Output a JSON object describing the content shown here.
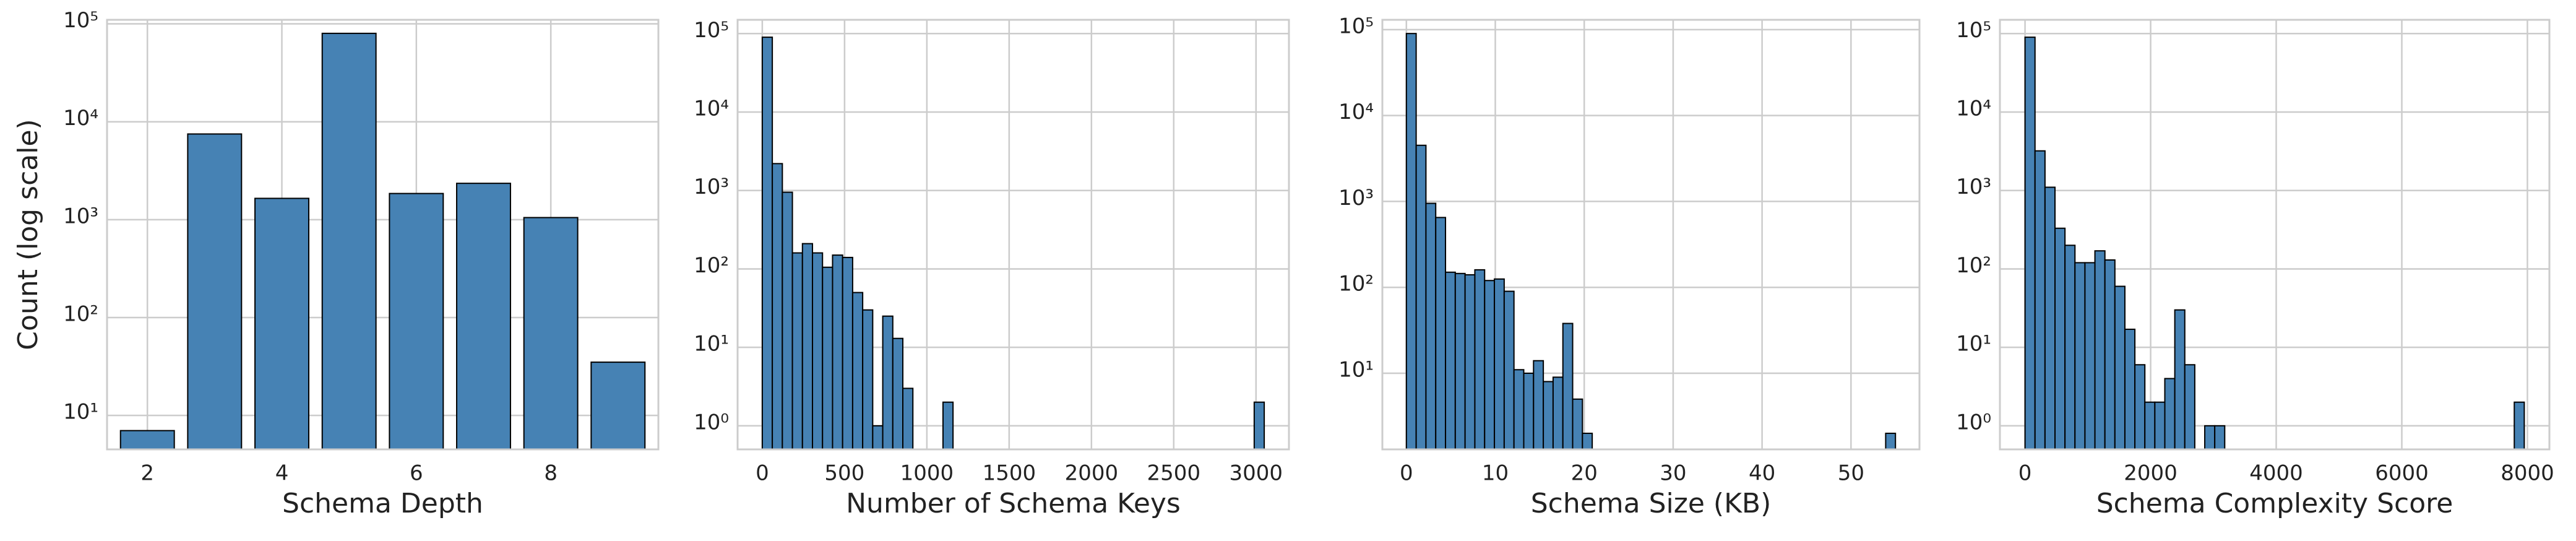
{
  "chart_data": [
    {
      "type": "bar",
      "x": [
        2,
        3,
        4,
        5,
        6,
        7,
        8,
        9
      ],
      "values": [
        7,
        7500,
        1650,
        80000,
        1850,
        2350,
        1050,
        35
      ],
      "color": "#4682b4",
      "edgecolor": "#000000",
      "xlabel": "Schema Depth",
      "ylabel": "Count (log scale)",
      "xlim": [
        1.4,
        9.6
      ],
      "xticks": [
        2,
        4,
        6,
        8
      ],
      "ylim": [
        4.5,
        110000
      ],
      "log_y": true,
      "grid": true,
      "yticks": [
        {
          "value": 10,
          "label": "10¹"
        },
        {
          "value": 100,
          "label": "10²"
        },
        {
          "value": 1000,
          "label": "10³"
        },
        {
          "value": 10000,
          "label": "10⁴"
        },
        {
          "value": 100000,
          "label": "10⁵"
        }
      ]
    },
    {
      "type": "histogram",
      "bins": [
        0,
        61,
        122,
        183,
        244,
        305,
        366,
        427,
        488,
        549,
        610,
        671,
        732,
        793,
        854,
        915,
        976,
        1037,
        1098,
        1159,
        1220,
        1281,
        1342,
        1403,
        1464,
        1525,
        1586,
        1647,
        1708,
        1769,
        1830,
        1891,
        1952,
        2013,
        2074,
        2135,
        2196,
        2257,
        2318,
        2379,
        2440,
        2501,
        2562,
        2623,
        2684,
        2745,
        2806,
        2867,
        2928,
        2989,
        3050
      ],
      "values": [
        90000,
        2200,
        950,
        160,
        210,
        160,
        105,
        150,
        140,
        50,
        30,
        1,
        25,
        13,
        3,
        0,
        0,
        0,
        2,
        0,
        0,
        0,
        0,
        0,
        0,
        0,
        0,
        0,
        0,
        0,
        0,
        0,
        0,
        0,
        0,
        0,
        0,
        0,
        0,
        0,
        0,
        0,
        0,
        0,
        0,
        0,
        0,
        0,
        0,
        2
      ],
      "color": "#4682b4",
      "edgecolor": "#000000",
      "xlabel": "Number of Schema Keys",
      "xlim": [
        -150,
        3200
      ],
      "xticks": [
        0,
        500,
        1000,
        1500,
        2000,
        2500,
        3000
      ],
      "ylim": [
        0.5,
        150000
      ],
      "log_y": true,
      "grid": true,
      "yticks": [
        {
          "value": 1,
          "label": "10⁰"
        },
        {
          "value": 10,
          "label": "10¹"
        },
        {
          "value": 100,
          "label": "10²"
        },
        {
          "value": 1000,
          "label": "10³"
        },
        {
          "value": 10000,
          "label": "10⁴"
        },
        {
          "value": 100000,
          "label": "10⁵"
        }
      ]
    },
    {
      "type": "histogram",
      "bins": [
        0,
        1.1,
        2.2,
        3.3,
        4.4,
        5.5,
        6.6,
        7.7,
        8.8,
        9.9,
        11,
        12.1,
        13.2,
        14.3,
        15.4,
        16.5,
        17.6,
        18.7,
        19.8,
        20.9,
        22,
        23.1,
        24.2,
        25.3,
        26.4,
        27.5,
        28.6,
        29.7,
        30.8,
        31.9,
        33,
        34.1,
        35.2,
        36.3,
        37.4,
        38.5,
        39.6,
        40.7,
        41.8,
        42.9,
        44,
        45.1,
        46.2,
        47.3,
        48.4,
        49.5,
        50.6,
        51.7,
        52.8,
        53.9,
        55
      ],
      "values": [
        90000,
        4500,
        950,
        650,
        150,
        145,
        140,
        160,
        120,
        125,
        90,
        11,
        10,
        14,
        8,
        9,
        38,
        5,
        2,
        0,
        0,
        0,
        0,
        0,
        0,
        0,
        0,
        0,
        0,
        0,
        0,
        0,
        0,
        0,
        0,
        0,
        0,
        0,
        0,
        0,
        0,
        0,
        0,
        0,
        0,
        0,
        0,
        0,
        0,
        2
      ],
      "color": "#4682b4",
      "edgecolor": "#000000",
      "xlabel": "Schema Size (KB)",
      "xlim": [
        -2.7,
        57.7
      ],
      "xticks": [
        0,
        10,
        20,
        30,
        40,
        50
      ],
      "ylim": [
        1.3,
        130000
      ],
      "log_y": true,
      "grid": true,
      "yticks": [
        {
          "value": 10,
          "label": "10¹"
        },
        {
          "value": 100,
          "label": "10²"
        },
        {
          "value": 1000,
          "label": "10³"
        },
        {
          "value": 10000,
          "label": "10⁴"
        },
        {
          "value": 100000,
          "label": "10⁵"
        }
      ]
    },
    {
      "type": "histogram",
      "bins": [
        0,
        159,
        318,
        477,
        636,
        795,
        954,
        1113,
        1272,
        1431,
        1590,
        1749,
        1908,
        2067,
        2226,
        2385,
        2544,
        2703,
        2862,
        3021,
        3180,
        3339,
        3498,
        3657,
        3816,
        3975,
        4134,
        4293,
        4452,
        4611,
        4770,
        4929,
        5088,
        5247,
        5406,
        5565,
        5724,
        5883,
        6042,
        6201,
        6360,
        6519,
        6678,
        6837,
        6996,
        7155,
        7314,
        7473,
        7632,
        7791,
        7950
      ],
      "values": [
        90000,
        3200,
        1100,
        330,
        200,
        120,
        120,
        170,
        130,
        60,
        17,
        6,
        2,
        2,
        4,
        30,
        6,
        0,
        1,
        1,
        0,
        0,
        0,
        0,
        0,
        0,
        0,
        0,
        0,
        0,
        0,
        0,
        0,
        0,
        0,
        0,
        0,
        0,
        0,
        0,
        0,
        0,
        0,
        0,
        0,
        0,
        0,
        0,
        0,
        2
      ],
      "color": "#4682b4",
      "edgecolor": "#000000",
      "xlabel": "Schema Complexity Score",
      "xlim": [
        -400,
        8350
      ],
      "xticks": [
        0,
        2000,
        4000,
        6000,
        8000
      ],
      "ylim": [
        0.5,
        150000
      ],
      "log_y": true,
      "grid": true,
      "yticks": [
        {
          "value": 1,
          "label": "10⁰"
        },
        {
          "value": 10,
          "label": "10¹"
        },
        {
          "value": 100,
          "label": "10²"
        },
        {
          "value": 1000,
          "label": "10³"
        },
        {
          "value": 10000,
          "label": "10⁴"
        },
        {
          "value": 100000,
          "label": "10⁵"
        }
      ]
    }
  ]
}
